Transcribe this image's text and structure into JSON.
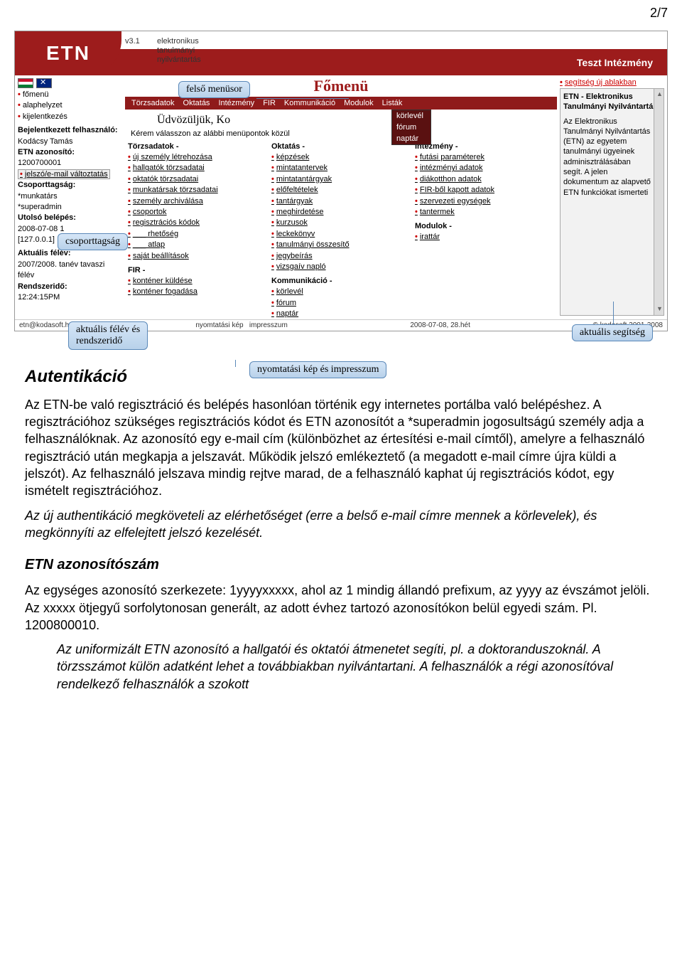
{
  "page_number": "2/7",
  "screenshot": {
    "logo": "ETN",
    "version": "v3.1",
    "tagline_l1": "elektronikus",
    "tagline_l2": "tanulmányi",
    "tagline_l3": "nyilvántartás",
    "institution": "Teszt Intézmény",
    "main_title": "Főmenü",
    "menubar": [
      "Törzsadatok",
      "Oktatás",
      "Intézmény",
      "FIR",
      "Kommunikáció",
      "Modulok",
      "Listák"
    ],
    "submenu": [
      "körlevél",
      "fórum",
      "naptár"
    ],
    "welcome": "Üdvözüljük, Ko",
    "instruction": "Kérem válasszon az alábbi menüpontok közül",
    "sidebar": {
      "nav": [
        "főmenü",
        "alaphelyzet",
        "kijelentkezés"
      ],
      "loggedin_h": "Bejelentkezett felhasználó:",
      "user": "Kodácsy Tamás",
      "etnid_h": "ETN azonosító:",
      "etnid": "1200700001",
      "changepw": "jelszó/e-mail változtatás",
      "grp_h": "Csoporttagság:",
      "grp1": "*munkatárs",
      "grp2": "*superadmin",
      "last_h": "Utolsó belépés:",
      "last": "2008-07-08 1",
      "ip": "[127.0.0.1]",
      "sem_h": "Aktuális félév:",
      "sem": "2007/2008. tanév tavaszi félév",
      "systime_h": "Rendszeridő:",
      "systime": "12:24:15PM"
    },
    "cols": {
      "torzs_h": "Törzsadatok -",
      "torzs": [
        "új személy létrehozása",
        "hallgatók törzsadatai",
        "oktatók törzsadatai",
        "munkatársak törzsadatai",
        "személy archiválása",
        "csoportok",
        "regisztrációs kódok",
        "___ rhetőség",
        "___ atlap",
        "saját beállítások"
      ],
      "fir_h": "FIR -",
      "fir": [
        "konténer küldése",
        "konténer fogadása"
      ],
      "okt_h": "Oktatás -",
      "okt": [
        "képzések",
        "mintatantervek",
        "mintatantárgyak",
        "előfeltételek",
        "tantárgyak",
        "meghirdetése",
        "kurzusok",
        "leckekönyv",
        "tanulmányi összesítő",
        "jegybeírás",
        "vizsgaív napló"
      ],
      "komm_h": "Kommunikáció -",
      "komm": [
        "körlevél",
        "fórum",
        "naptár"
      ],
      "int_h": "Intézmény -",
      "int": [
        "futási paraméterek",
        "intézményi adatok",
        "diákotthon adatok",
        "FIR-ből kapott adatok",
        "szervezeti egységek",
        "tantermek"
      ],
      "mod_h": "Modulok -",
      "mod": [
        "irattár"
      ]
    },
    "right": {
      "helplink": "segítség új ablakban",
      "help_title": "ETN - Elektronikus Tanulmányi Nyilvántartás",
      "help_body": "Az Elektronikus Tanulmányi Nyilvántartás (ETN) az egyetem tanulmányi ügyeinek adminisztrálásában segít. A jelen dokumentum az alapvető ETN funkciókat ismerteti"
    },
    "footer": {
      "left": "etn@kodasoft.hu",
      "mid1": "nyomtatási kép",
      "mid2": "impresszum",
      "date": "2008-07-08, 28.hét",
      "right": "© kodasoft 2001-2008"
    }
  },
  "callouts": {
    "c1": "felső menüsor",
    "c2": "csoporttagság",
    "c3_l1": "aktuális félév és",
    "c3_l2": "rendszeridő",
    "c4": "aktuális segítség",
    "c5": "nyomtatási kép és impresszum"
  },
  "doc": {
    "h_auth": "Autentikáció",
    "p1": "Az ETN-be való regisztráció és belépés hasonlóan történik egy internetes portálba való belépéshez. A regisztrációhoz szükséges regisztrációs kódot és ETN azonosítót a *superadmin jogosultságú személy adja a felhasználóknak. Az azonosító egy e-mail cím (különbözhet az értesítési e-mail címtől), amelyre a felhasználó regisztráció után megkapja a jelszavát. Működik jelszó emlékeztető (a megadott e-mail címre újra küldi a jelszót). Az felhasználó jelszava mindig rejtve marad, de a felhasználó kaphat új regisztrációs kódot, egy ismételt regisztrációhoz.",
    "p2": "Az új authentikáció megköveteli az elérhetőséget (erre a belső e-mail címre mennek a körlevelek), és megkönnyíti az elfelejtett jelszó kezelését.",
    "h_etnid": "ETN azonosítószám",
    "p3": "Az egységes azonosító szerkezete: 1yyyyxxxxx, ahol az 1 mindig állandó prefixum, az yyyy az évszámot jelöli. Az xxxxx ötjegyű sorfolytonosan generált, az adott évhez tartozó azonosítókon belül egyedi szám. Pl. 1200800010.",
    "p4": "Az uniformizált ETN azonosító a hallgatói és oktatói átmenetet segíti, pl. a doktoranduszoknál. A törzsszámot külön adatként lehet a továbbiakban nyilvántartani. A felhasználók a régi azonosítóval rendelkező felhasználók a szokott"
  },
  "colors": {
    "brand": "#9d1c1c",
    "bullet": "#c00000",
    "callout_border": "#5a88b8",
    "callout_bg1": "#d6e6f7",
    "callout_bg2": "#b8d1ea"
  }
}
